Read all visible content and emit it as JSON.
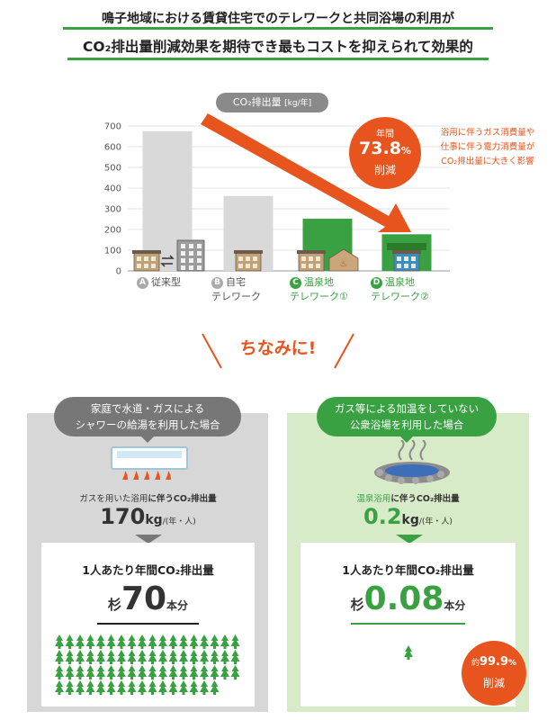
{
  "headline": {
    "line1": "鳴子地域における賃貸住宅でのテレワークと共同浴場の利用が",
    "line2": "CO₂排出量削減効果を期待でき最もコストを抑えられて効果的"
  },
  "chart_data": {
    "type": "bar",
    "title": "CO₂排出量",
    "unit": "[kg/年]",
    "ylim": [
      0,
      700
    ],
    "yticks": [
      0,
      100,
      200,
      300,
      400,
      500,
      600,
      700
    ],
    "grid": true,
    "categories": [
      {
        "letter": "A",
        "line1": "従来型",
        "line2": ""
      },
      {
        "letter": "B",
        "line1": "自宅",
        "line2": "テレワーク"
      },
      {
        "letter": "C",
        "line1": "温泉地",
        "line2": "テレワーク①"
      },
      {
        "letter": "D",
        "line1": "温泉地",
        "line2": "テレワーク②"
      }
    ],
    "values": [
      675,
      362,
      252,
      177
    ],
    "colors": [
      "#d9d9d9",
      "#d9d9d9",
      "#3aa142",
      "#3aa142"
    ],
    "annotation": {
      "line1": "年間",
      "value": "73.8",
      "unit": "%",
      "line3": "削減"
    },
    "note": [
      "浴用に伴うガス消費量や",
      "仕事に伴う電力消費量が",
      "CO₂排出量に大きく影響"
    ]
  },
  "chinami": "ちなみに!",
  "left": {
    "pill": [
      "家庭で水道・ガスによる",
      "シャワーの給湯を利用した場合"
    ],
    "emission_label_pre": "ガスを用いた浴用",
    "emission_label_post": "に伴うCO₂排出量",
    "value": "170",
    "unit": "kg",
    "per": "/(年・人)",
    "box_title": "1人あたり年間CO₂排出量",
    "cedar_label": "杉",
    "cedar_value": "70",
    "cedar_unit": "本分",
    "tree_count": 70
  },
  "right": {
    "pill": [
      "ガス等による加温をしていない",
      "公衆浴場を利用した場合"
    ],
    "emission_label_pre": "温泉浴用",
    "emission_label_post": "に伴うCO₂排出量",
    "value": "0.2",
    "unit": "kg",
    "per": "/(年・人)",
    "box_title": "1人あたり年間CO₂排出量",
    "cedar_label": "杉",
    "cedar_value": "0.08",
    "cedar_unit": "本分",
    "tree_count": 1,
    "reduce": {
      "pre": "約",
      "value": "99.9",
      "unit": "%",
      "label": "削減"
    }
  },
  "colors": {
    "green": "#3aa142",
    "orange": "#e8541e",
    "gray": "#8a8a8a"
  }
}
